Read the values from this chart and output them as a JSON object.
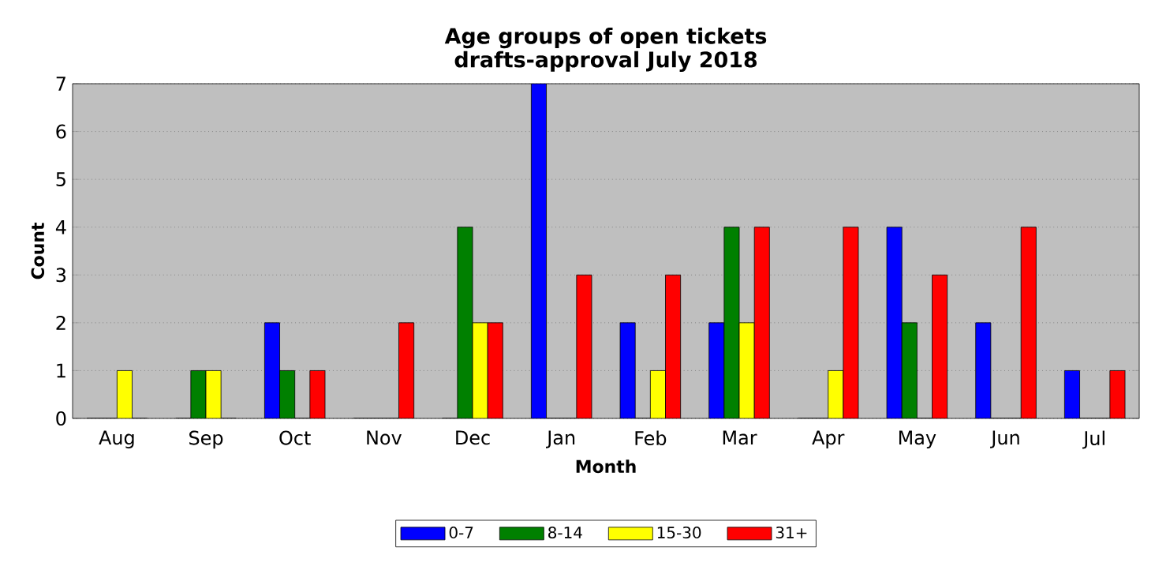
{
  "chart_data": {
    "type": "bar",
    "title": "Age groups of open tickets\ndrafts-approval July 2018",
    "xlabel": "Month",
    "ylabel": "Count",
    "categories": [
      "Aug",
      "Sep",
      "Oct",
      "Nov",
      "Dec",
      "Jan",
      "Feb",
      "Mar",
      "Apr",
      "May",
      "Jun",
      "Jul"
    ],
    "series": [
      {
        "name": "0-7",
        "color": "#0000ff",
        "values": [
          0,
          0,
          2,
          0,
          0,
          7,
          2,
          2,
          0,
          4,
          2,
          1
        ]
      },
      {
        "name": "8-14",
        "color": "#008000",
        "values": [
          0,
          1,
          1,
          0,
          4,
          0,
          0,
          4,
          0,
          2,
          0,
          0
        ]
      },
      {
        "name": "15-30",
        "color": "#ffff00",
        "values": [
          1,
          1,
          0,
          0,
          2,
          0,
          1,
          2,
          1,
          0,
          0,
          0
        ]
      },
      {
        "name": "31+",
        "color": "#ff0000",
        "values": [
          0,
          0,
          1,
          2,
          2,
          3,
          3,
          4,
          4,
          3,
          4,
          1
        ]
      }
    ],
    "ylim": [
      0,
      7
    ],
    "yticks": [
      0,
      1,
      2,
      3,
      4,
      5,
      6,
      7
    ],
    "grid": "y",
    "legend": "bottom"
  }
}
